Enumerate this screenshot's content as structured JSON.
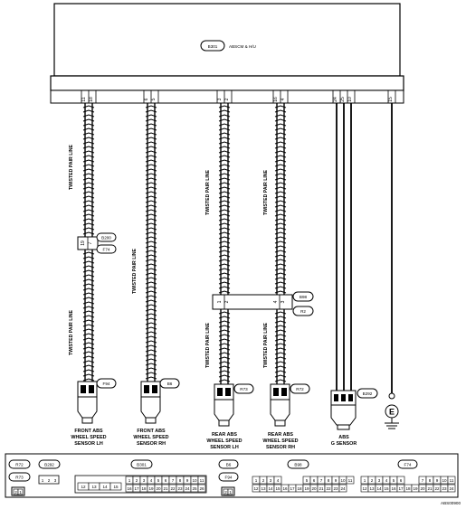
{
  "module": {
    "code": "B301",
    "name": "ABSCM & H/U"
  },
  "module_pins": [
    "11",
    "18",
    "6",
    "5",
    "3",
    "2",
    "16",
    "4",
    "24",
    "25",
    "10",
    "15"
  ],
  "twisted_label": "TWISTED PAIR LINE",
  "inline_connectors": {
    "left": {
      "codes": [
        "B200",
        "F74"
      ],
      "pins": [
        "19",
        "7"
      ]
    },
    "rear": {
      "codes": [
        "B98",
        "R2"
      ],
      "pins_left": [
        "1",
        "2"
      ],
      "pins_right": [
        "4",
        "3"
      ]
    }
  },
  "sensor_connectors": [
    "F94",
    "B6",
    "R73",
    "R72",
    "B292"
  ],
  "sensors": [
    {
      "lines": [
        "FRONT ABS",
        "WHEEL SPEED",
        "SENSOR LH"
      ]
    },
    {
      "lines": [
        "FRONT ABS",
        "WHEEL SPEED",
        "SENSOR RH"
      ]
    },
    {
      "lines": [
        "REAR ABS",
        "WHEEL SPEED",
        "SENSOR LH"
      ]
    },
    {
      "lines": [
        "REAR ABS",
        "WHEEL SPEED",
        "SENSOR RH"
      ]
    },
    {
      "lines": [
        "ABS",
        "G SENSOR",
        ""
      ]
    }
  ],
  "ground": "E",
  "connector_views": {
    "r72": "R72",
    "r73": "R73",
    "r7x_pins": [
      "2",
      "1"
    ],
    "b292": "B292",
    "b292_pins": [
      "1",
      "2",
      "3"
    ],
    "b301": "B301",
    "b301_row1": [
      "1",
      "2",
      "3",
      "4",
      "5",
      "6",
      "7",
      "8",
      "9",
      "10",
      "11"
    ],
    "b301_row2a": [
      "12",
      "13",
      "14",
      "15"
    ],
    "b301_row2": [
      "16",
      "17",
      "18",
      "19",
      "20",
      "21",
      "22",
      "23",
      "24",
      "25",
      "26"
    ],
    "b6": "B6",
    "f94": "F94",
    "b6_pins": [
      "2",
      "1"
    ],
    "b98": "B98",
    "b98_row1a": [
      "1",
      "2",
      "3",
      "4"
    ],
    "b98_row1b": [
      "5",
      "6",
      "7",
      "8",
      "9",
      "10",
      "11"
    ],
    "b98_row2": [
      "12",
      "13",
      "14",
      "15",
      "16",
      "17",
      "18",
      "19",
      "20",
      "21",
      "22",
      "23",
      "24"
    ],
    "f74": "F74",
    "f74_row1a": [
      "1",
      "2",
      "3",
      "4",
      "5",
      "6"
    ],
    "f74_row1b": [
      "7",
      "8",
      "9",
      "10",
      "11"
    ],
    "f74_row2": [
      "12",
      "13",
      "14",
      "15",
      "16",
      "17",
      "18",
      "19",
      "20",
      "21",
      "22",
      "23",
      "24"
    ]
  },
  "figure_id": "ABS00900"
}
